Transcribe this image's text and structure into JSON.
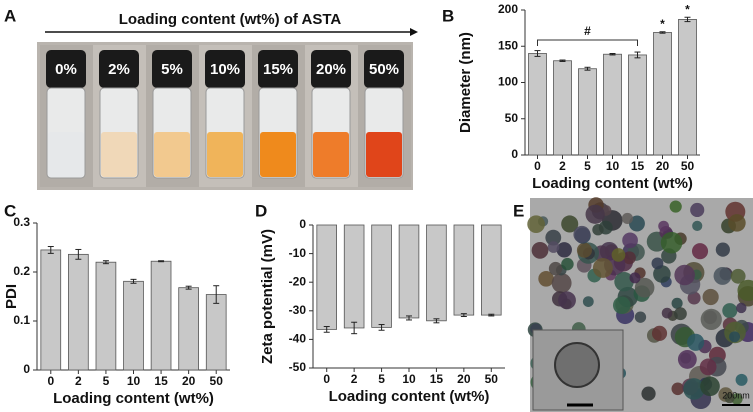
{
  "panel_labels": [
    "A",
    "B",
    "C",
    "D",
    "E"
  ],
  "photo": {
    "title": "Loading content (wt%) of ASTA",
    "vial_labels": [
      "0%",
      "2%",
      "5%",
      "10%",
      "15%",
      "20%",
      "50%"
    ]
  },
  "tem": {
    "scale_label": "200nm"
  },
  "chart_data": [
    {
      "type": "bar",
      "categories": [
        "0",
        "2",
        "5",
        "10",
        "15",
        "20",
        "50"
      ],
      "values": [
        140,
        130,
        119,
        139,
        138,
        169,
        187
      ],
      "errors": [
        4,
        1,
        2,
        1,
        4,
        1,
        3
      ],
      "color": "#c8c8c8",
      "ylim": [
        0,
        200
      ],
      "yticks": [
        0,
        50,
        100,
        150,
        200
      ],
      "xlabel": "Loading content (wt%)",
      "ylabel": "Diameter (nm)",
      "annotations": [
        "#",
        "*",
        "*"
      ]
    },
    {
      "type": "bar",
      "categories": [
        "0",
        "2",
        "5",
        "10",
        "15",
        "20",
        "50"
      ],
      "values": [
        0.245,
        0.236,
        0.22,
        0.181,
        0.222,
        0.168,
        0.154
      ],
      "errors": [
        0.007,
        0.01,
        0.003,
        0.004,
        0.001,
        0.003,
        0.018
      ],
      "color": "#c8c8c8",
      "ylim": [
        0,
        0.3
      ],
      "yticks": [
        0,
        0.1,
        0.2,
        0.3
      ],
      "xlabel": "Loading content (wt%)",
      "ylabel": "PDI"
    },
    {
      "type": "bar",
      "categories": [
        "0",
        "2",
        "5",
        "10",
        "15",
        "20",
        "50"
      ],
      "values": [
        -36.5,
        -36,
        -35.8,
        -32.5,
        -33.5,
        -31.5,
        -31.5
      ],
      "errors": [
        1,
        2,
        1,
        0.7,
        0.7,
        0.5,
        0.3
      ],
      "color": "#c8c8c8",
      "ylim": [
        -50,
        0
      ],
      "yticks": [
        0,
        -10,
        -20,
        -30,
        -40,
        -50
      ],
      "xlabel": "Loading content (wt%)",
      "ylabel": "Zeta potential (mV)"
    }
  ]
}
